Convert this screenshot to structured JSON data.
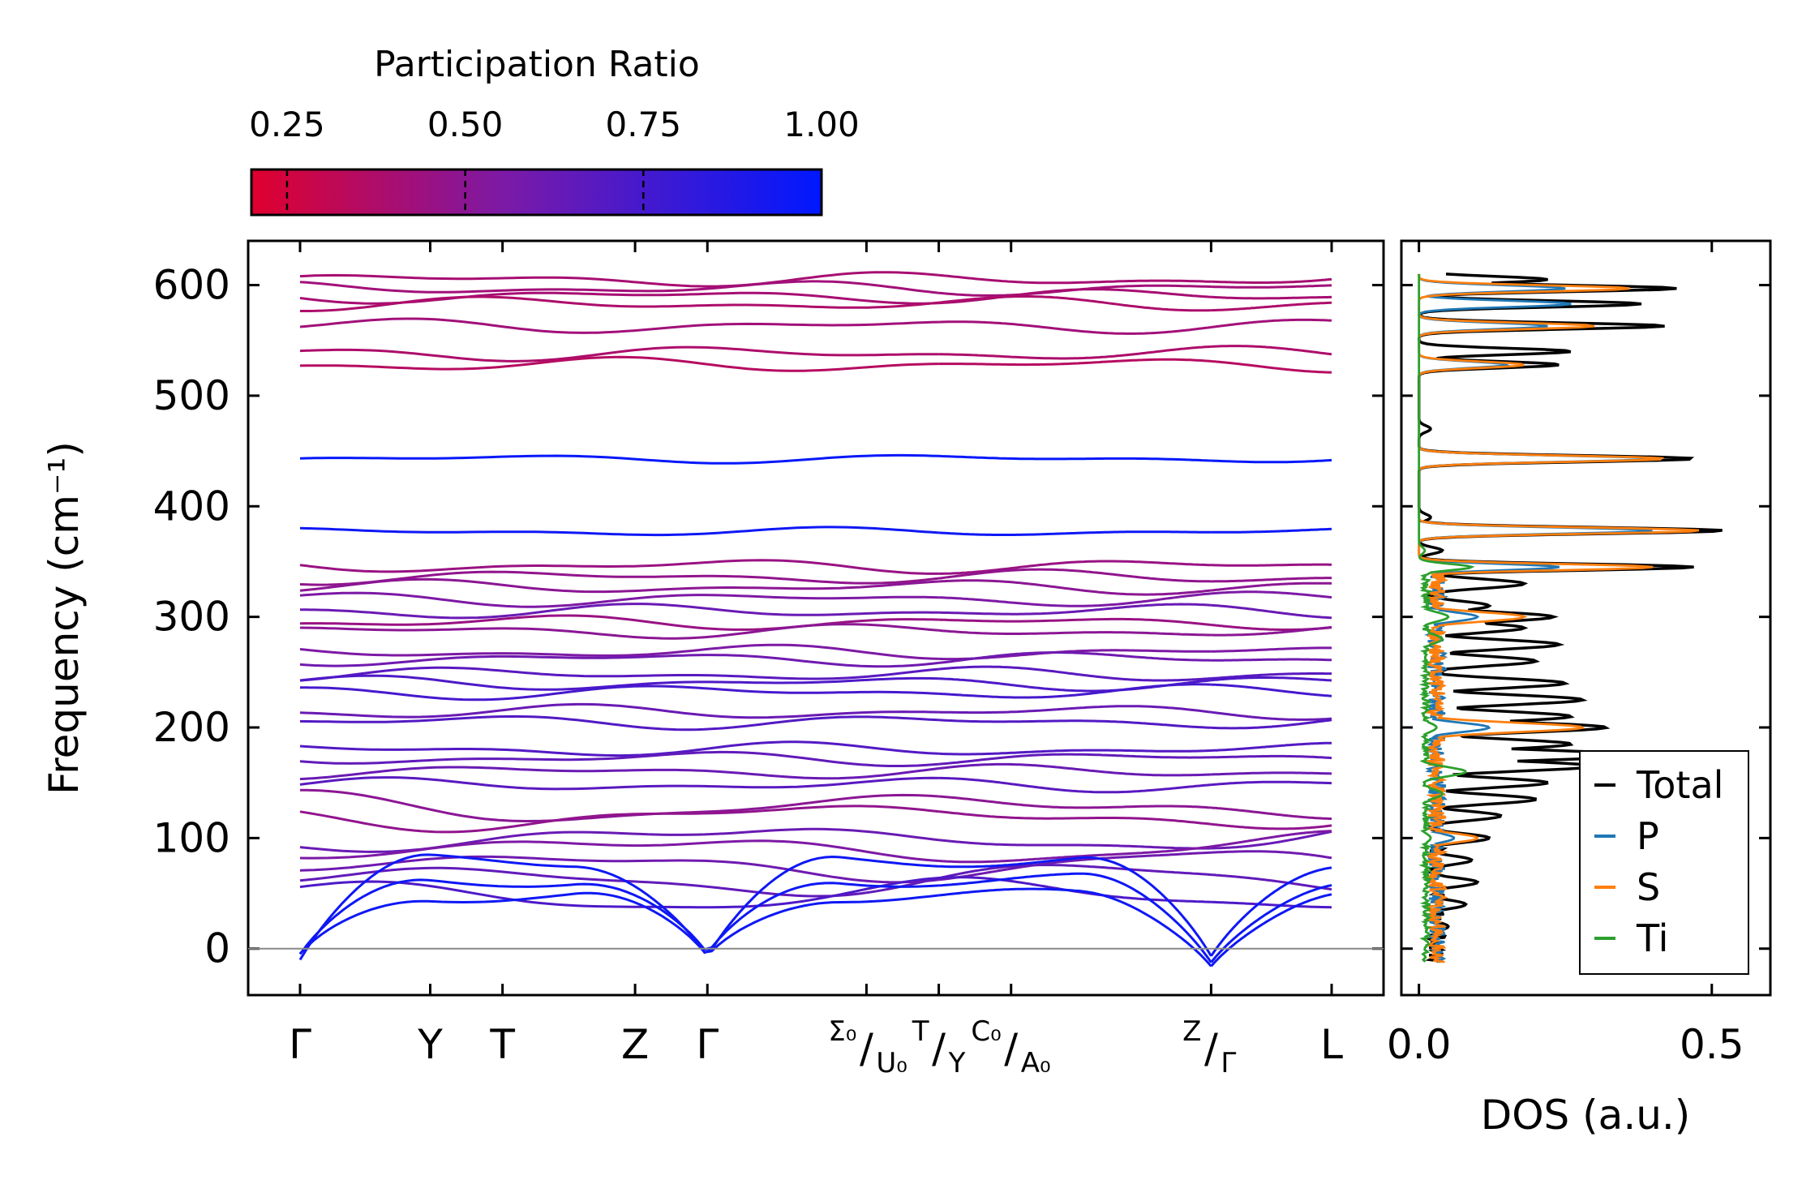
{
  "colorbar": {
    "title": "Participation Ratio",
    "ticks": [
      "0.25",
      "0.50",
      "0.75",
      "1.00"
    ],
    "tick_values": [
      0.25,
      0.5,
      0.75,
      1.0
    ],
    "range": [
      0.2,
      1.0
    ],
    "color_low": "#e0002e",
    "color_mid": "#7a1aa8",
    "color_high": "#0018ff"
  },
  "band_panel": {
    "ylabel": "Frequency (cm⁻¹)",
    "ylim": [
      -42,
      640
    ],
    "yticks": [
      0,
      100,
      200,
      300,
      400,
      500,
      600
    ],
    "ytick_labels": [
      "0",
      "100",
      "200",
      "300",
      "400",
      "500",
      "600"
    ],
    "kpoints": [
      {
        "pos": 0.0,
        "main": "Γ"
      },
      {
        "pos": 0.54,
        "main": "Y"
      },
      {
        "pos": 0.84,
        "main": "T"
      },
      {
        "pos": 1.39,
        "main": "Z"
      },
      {
        "pos": 1.69,
        "main": "Γ"
      },
      {
        "pos": 2.35,
        "a": "Σ₀",
        "b": "U₀"
      },
      {
        "pos": 2.65,
        "a": "T",
        "b": "Y"
      },
      {
        "pos": 2.95,
        "a": "C₀",
        "b": "A₀"
      },
      {
        "pos": 3.78,
        "a": "Z",
        "b": "Γ"
      },
      {
        "pos": 4.28,
        "main": "L"
      }
    ],
    "segments": [
      [
        0.0,
        2.65
      ],
      [
        2.65,
        3.78
      ],
      [
        3.78,
        4.28
      ]
    ]
  },
  "dos_panel": {
    "xlabel": "DOS (a.u.)",
    "xlim": [
      -0.03,
      0.6
    ],
    "xticks": [
      0.0,
      0.5
    ],
    "xtick_labels": [
      "0.0",
      "0.5"
    ],
    "legend": [
      {
        "label": "Total",
        "color": "#000000"
      },
      {
        "label": "P",
        "color": "#1f77b4"
      },
      {
        "label": "S",
        "color": "#ff7f0e"
      },
      {
        "label": "Ti",
        "color": "#2ca02c"
      }
    ]
  },
  "chart_data": {
    "type": "line",
    "title": "",
    "phonon_bands": {
      "description": "Phonon dispersion frequencies (cm^-1) along k-path, colored by participation ratio",
      "flat_bands": [
        {
          "freq": 605,
          "pr": 0.4
        },
        {
          "freq": 597,
          "pr": 0.42
        },
        {
          "freq": 590,
          "pr": 0.4
        },
        {
          "freq": 583,
          "pr": 0.38
        },
        {
          "freq": 563,
          "pr": 0.42
        },
        {
          "freq": 538,
          "pr": 0.38
        },
        {
          "freq": 528,
          "pr": 0.35
        },
        {
          "freq": 443,
          "pr": 0.98
        },
        {
          "freq": 377,
          "pr": 0.95
        },
        {
          "freq": 346,
          "pr": 0.45
        },
        {
          "freq": 336,
          "pr": 0.48
        },
        {
          "freq": 327,
          "pr": 0.5
        },
        {
          "freq": 316,
          "pr": 0.55
        },
        {
          "freq": 305,
          "pr": 0.62
        },
        {
          "freq": 295,
          "pr": 0.45
        },
        {
          "freq": 287,
          "pr": 0.5
        },
        {
          "freq": 268,
          "pr": 0.55
        },
        {
          "freq": 262,
          "pr": 0.6
        },
        {
          "freq": 248,
          "pr": 0.68
        },
        {
          "freq": 240,
          "pr": 0.72
        },
        {
          "freq": 232,
          "pr": 0.75
        },
        {
          "freq": 214,
          "pr": 0.62
        },
        {
          "freq": 205,
          "pr": 0.7
        },
        {
          "freq": 180,
          "pr": 0.7
        },
        {
          "freq": 172,
          "pr": 0.65
        },
        {
          "freq": 160,
          "pr": 0.62
        },
        {
          "freq": 148,
          "pr": 0.68
        },
        {
          "freq": 128,
          "pr": 0.5
        },
        {
          "freq": 120,
          "pr": 0.48
        },
        {
          "freq": 100,
          "pr": 0.62
        },
        {
          "freq": 90,
          "pr": 0.55
        },
        {
          "freq": 75,
          "pr": 0.6
        },
        {
          "freq": 62,
          "pr": 0.65
        },
        {
          "freq": 48,
          "pr": 0.72
        }
      ],
      "acoustic_bands": [
        {
          "endpoint_freq": 40,
          "pr": 0.95
        },
        {
          "endpoint_freq": 22,
          "pr": 0.95
        },
        {
          "endpoint_freq": 8,
          "pr": 0.95
        }
      ]
    },
    "dos": {
      "series": [
        {
          "name": "Total",
          "freqs": [
            0,
            20,
            40,
            60,
            80,
            100,
            120,
            135,
            150,
            165,
            175,
            185,
            200,
            210,
            225,
            240,
            260,
            275,
            290,
            300,
            310,
            330,
            345,
            360,
            378,
            390,
            443,
            470,
            528,
            540,
            563,
            583,
            597,
            605
          ],
          "values": [
            0.01,
            0.05,
            0.08,
            0.1,
            0.09,
            0.12,
            0.14,
            0.2,
            0.22,
            0.3,
            0.38,
            0.26,
            0.32,
            0.26,
            0.28,
            0.25,
            0.2,
            0.24,
            0.18,
            0.23,
            0.12,
            0.18,
            0.47,
            0.04,
            0.52,
            0.02,
            0.47,
            0.02,
            0.24,
            0.26,
            0.42,
            0.38,
            0.44,
            0.22
          ]
        },
        {
          "name": "P",
          "freqs": [
            0,
            100,
            200,
            300,
            345,
            378,
            443,
            528,
            563,
            583,
            597
          ],
          "values": [
            0.01,
            0.06,
            0.12,
            0.1,
            0.24,
            0.4,
            0.4,
            0.15,
            0.22,
            0.26,
            0.25
          ]
        },
        {
          "name": "S",
          "freqs": [
            0,
            100,
            200,
            300,
            345,
            378,
            443,
            528,
            563,
            597
          ],
          "values": [
            0.01,
            0.1,
            0.28,
            0.18,
            0.4,
            0.48,
            0.42,
            0.18,
            0.3,
            0.36
          ]
        },
        {
          "name": "Ti",
          "freqs": [
            0,
            100,
            140,
            160,
            200,
            280,
            300,
            345,
            360
          ],
          "values": [
            0.01,
            0.02,
            0.04,
            0.08,
            0.03,
            0.04,
            0.05,
            0.09,
            0.01
          ]
        }
      ]
    }
  }
}
